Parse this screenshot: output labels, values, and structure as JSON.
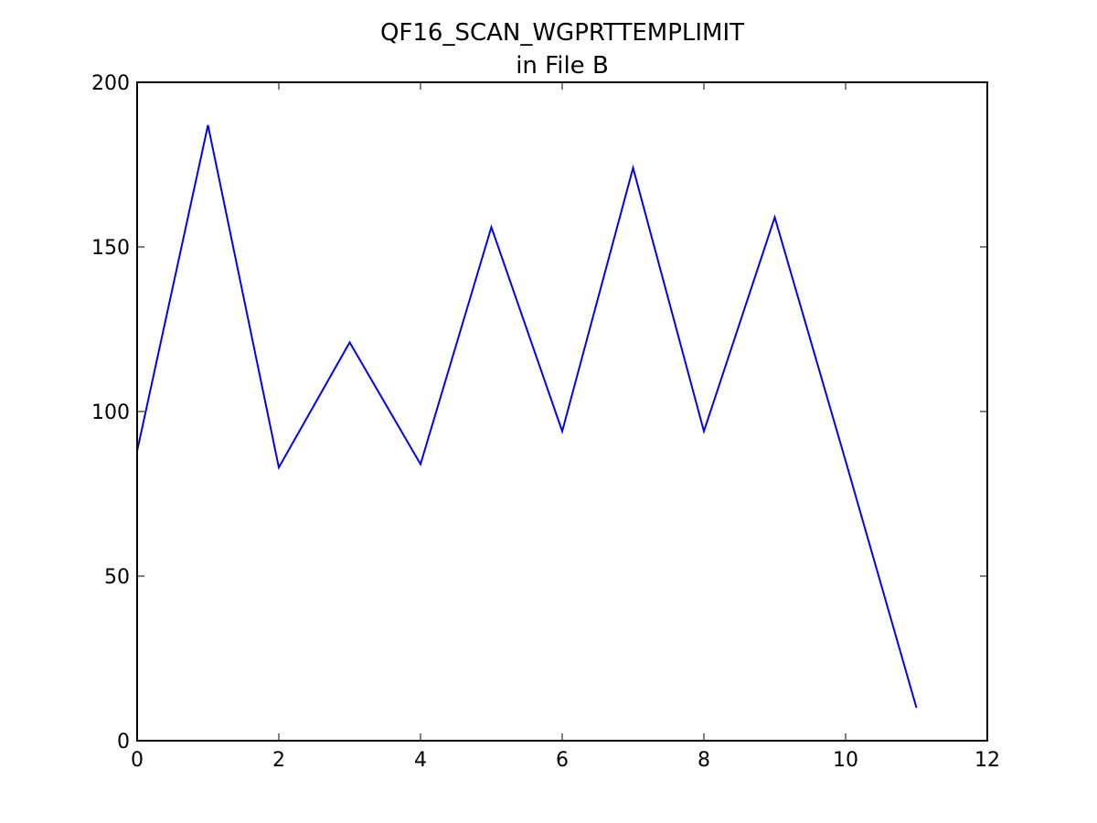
{
  "chart_data": {
    "type": "line",
    "title": [
      "QF16_SCAN_WGPRTTEMPLIMIT",
      "in File B"
    ],
    "x": [
      0,
      1,
      2,
      3,
      4,
      5,
      6,
      7,
      8,
      9,
      10,
      11
    ],
    "series": [
      {
        "color": "#0000ff",
        "values": [
          88,
          187,
          83,
          121,
          84,
          156,
          94,
          174,
          94,
          159,
          85,
          10
        ]
      }
    ],
    "xlim": [
      0,
      12
    ],
    "xticks": [
      0,
      2,
      4,
      6,
      8,
      10,
      12
    ],
    "ylim": [
      0,
      200
    ],
    "yticks": [
      0,
      50,
      100,
      150,
      200
    ],
    "grid": false
  }
}
